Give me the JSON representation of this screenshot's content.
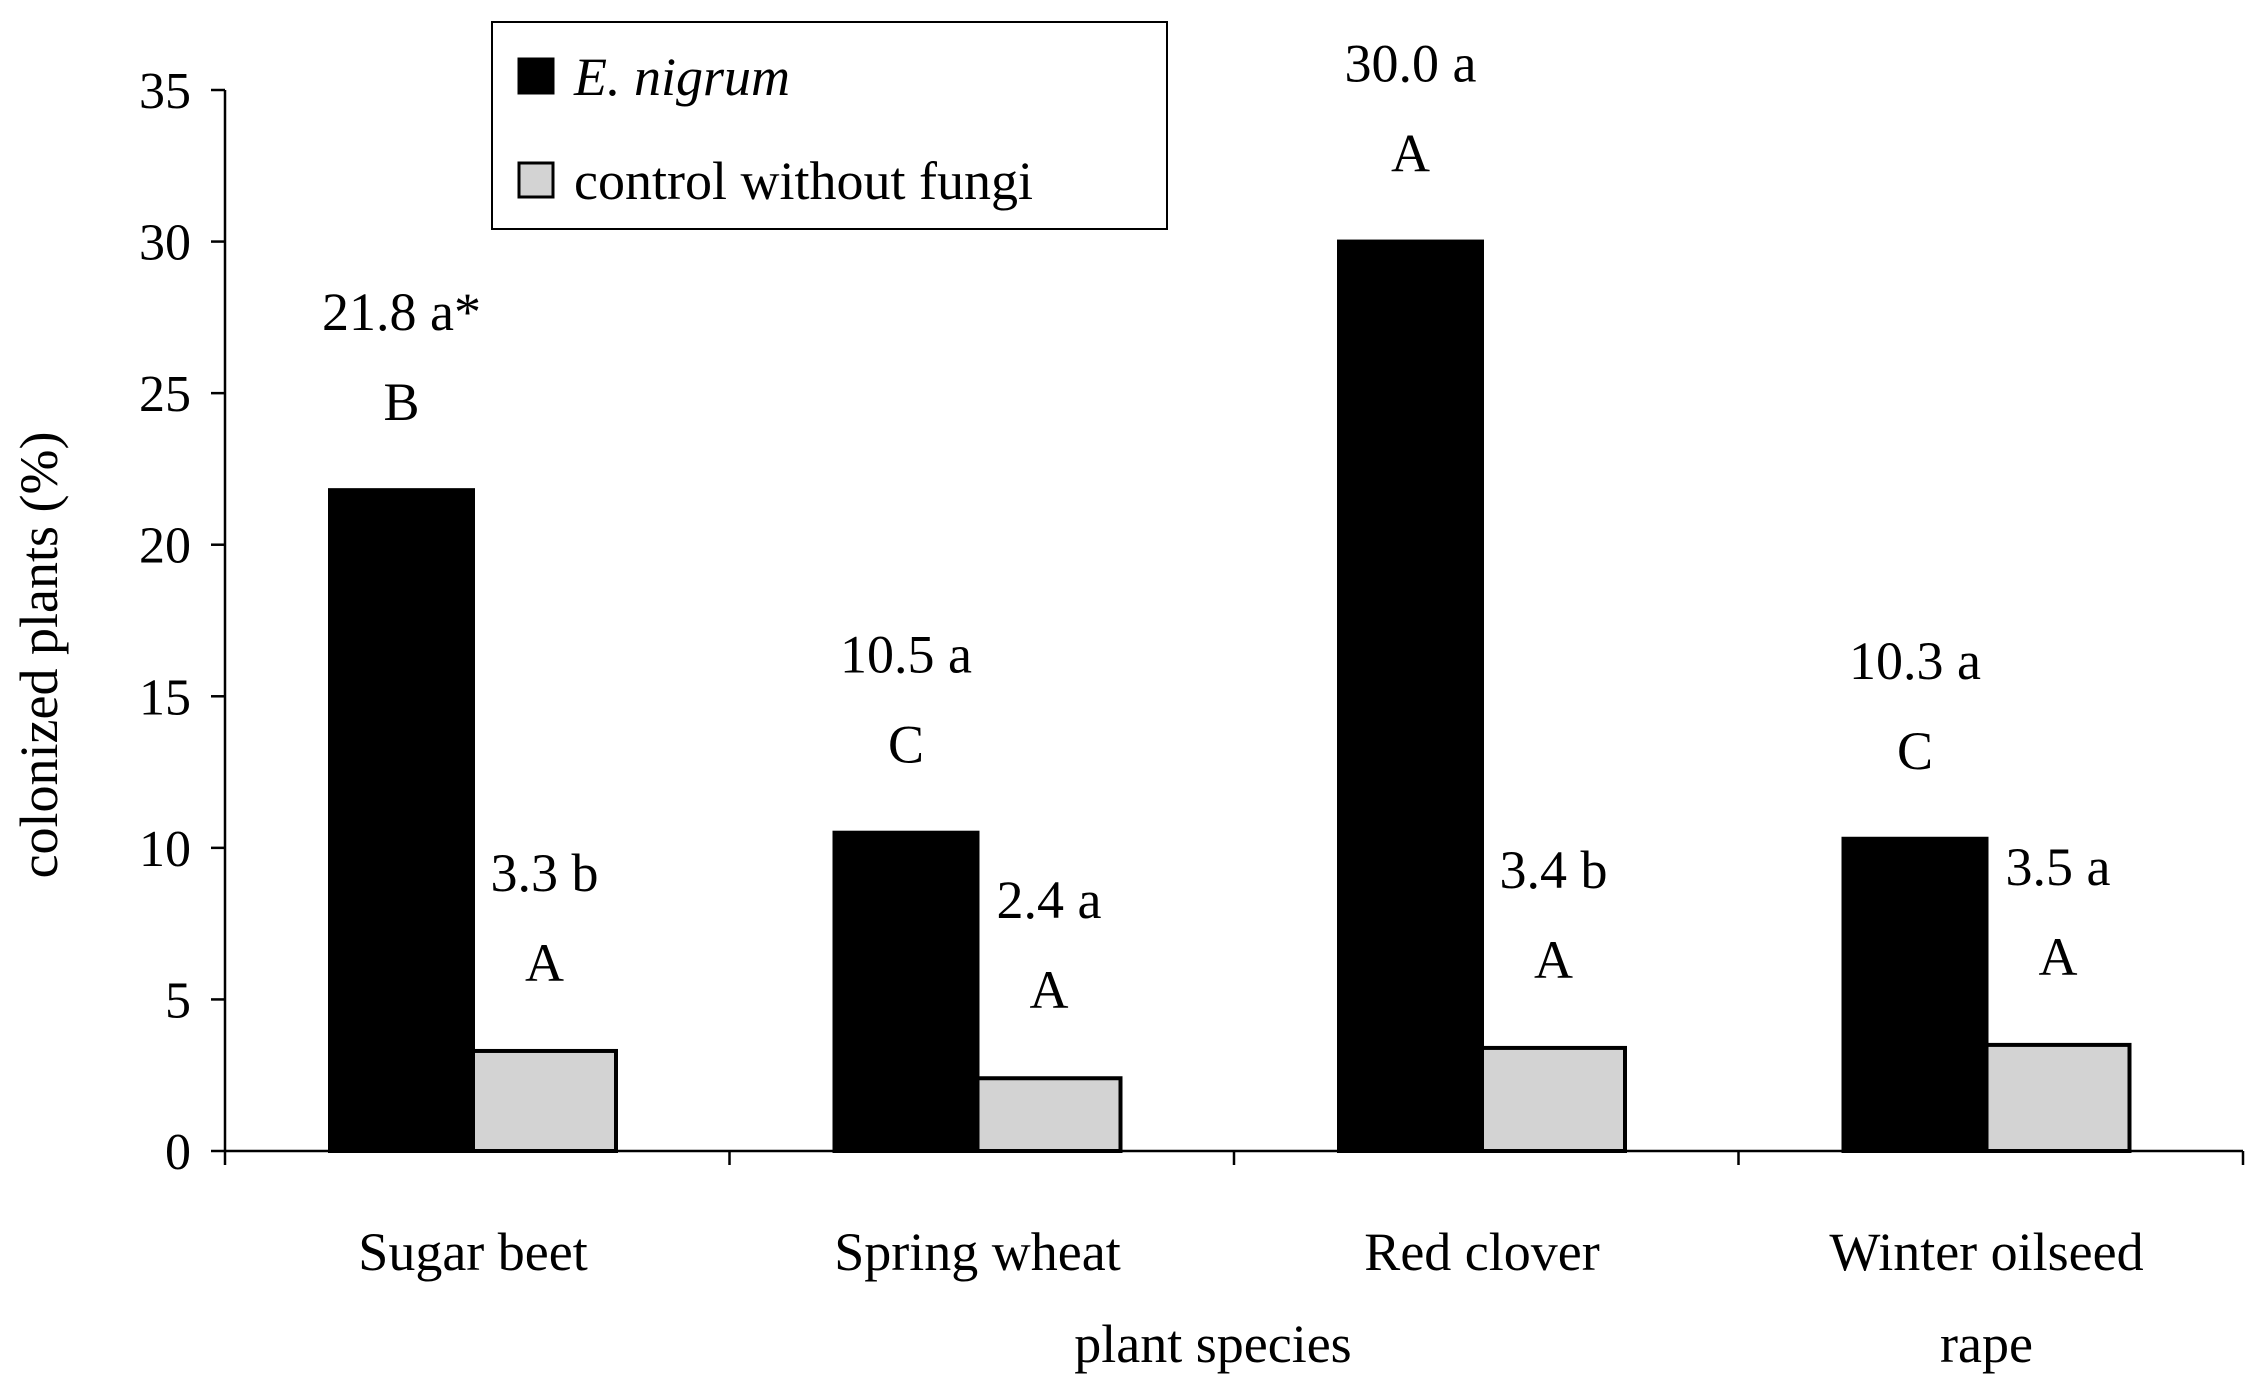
{
  "chart_data": {
    "type": "bar",
    "title": "",
    "xlabel": "plant species",
    "ylabel": "colonized plants (%)",
    "ylim": [
      0,
      35
    ],
    "yticks": [
      0,
      5,
      10,
      15,
      20,
      25,
      30,
      35
    ],
    "categories": [
      [
        "Sugar beet"
      ],
      [
        "Spring wheat"
      ],
      [
        "Red clover"
      ],
      [
        "Winter oilseed",
        "rape"
      ]
    ],
    "series": [
      {
        "name": "E. nigrum",
        "color": "#000000",
        "values": [
          21.8,
          10.5,
          30.0,
          10.3
        ],
        "annotations": [
          [
            "21.8 a*",
            "B"
          ],
          [
            "10.5 a",
            "C"
          ],
          [
            "30.0 a",
            "A"
          ],
          [
            "10.3 a",
            "C"
          ]
        ]
      },
      {
        "name": "control without fungi",
        "color": "#d3d3d3",
        "values": [
          3.3,
          2.4,
          3.4,
          3.5
        ],
        "annotations": [
          [
            "3.3 b",
            "A"
          ],
          [
            "2.4 a",
            "A"
          ],
          [
            "3.4 b",
            "A"
          ],
          [
            "3.5 a",
            "A"
          ]
        ]
      }
    ],
    "legend": {
      "position": "top-left",
      "items": [
        "E. nigrum",
        "control without fungi"
      ]
    },
    "grid": false
  }
}
